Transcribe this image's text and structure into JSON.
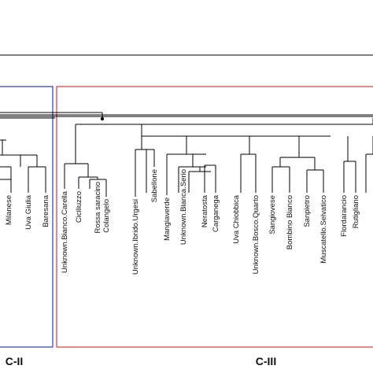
{
  "groups": [
    {
      "label": "C-II",
      "color": "#2b3bb5"
    },
    {
      "label": "C-III",
      "color": "#e03a3a"
    }
  ],
  "leaves": {
    "c2": [
      "Milanese",
      "Uva Giulia",
      "Baresana"
    ],
    "c3": [
      "Unknown.Bianco.Carella",
      "Ciciliuzzo",
      "Rossa saracino",
      "Colangelo",
      "Unknown.Ibrido.Urgesi",
      "Sabellone",
      "Mangiaverde",
      "Unknown.Bianca.Serio",
      "Neratosta",
      "Carganega",
      "Uva Chiobbica",
      "Unknown.Bosco.Quarto",
      "Sangiovese",
      "Bombino Bianco",
      "Sanpietro",
      "Muscatello.Selvatico",
      "Flordarancio",
      "Rutigliano"
    ]
  }
}
